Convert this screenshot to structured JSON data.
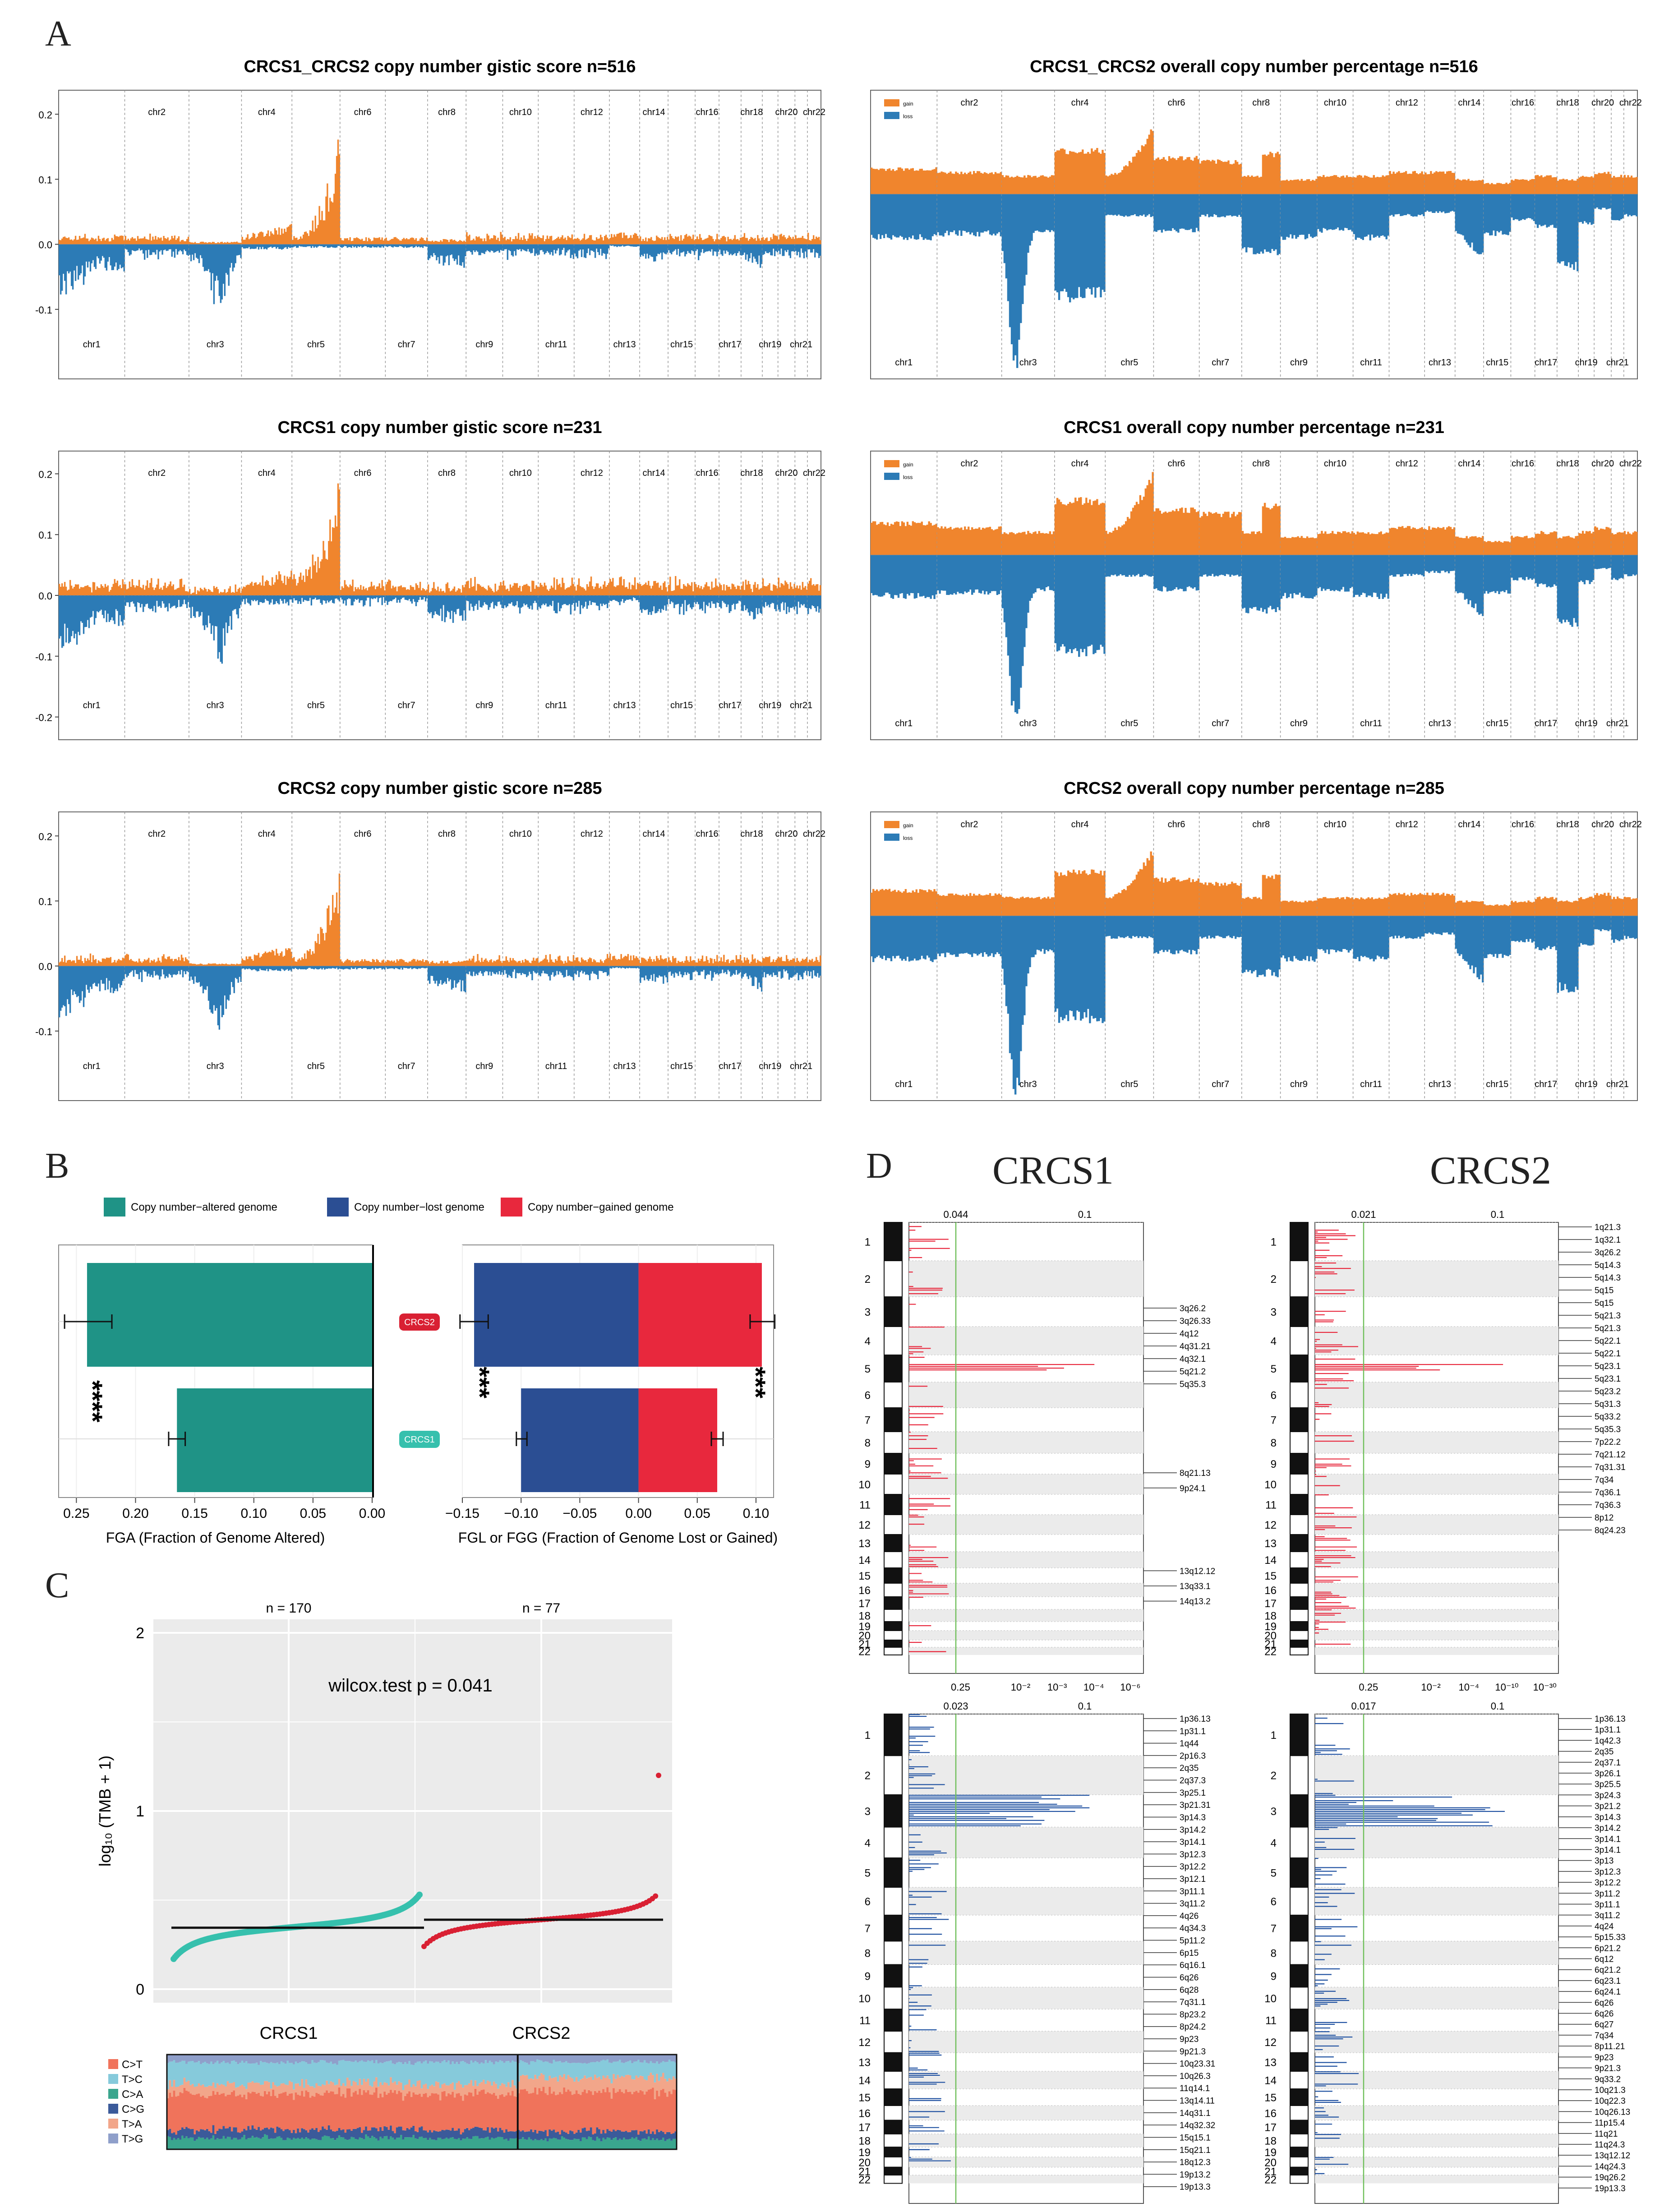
{
  "panel_letters": {
    "a": "A",
    "b": "B",
    "c": "C",
    "d": "D"
  },
  "colors": {
    "gain": "#f0852d",
    "loss": "#2c7bb6",
    "altered": "#1f9386",
    "lost": "#2b4e93",
    "gained": "#e8283d",
    "crcs1": "#36c0ad",
    "crcs2": "#d92033",
    "grid": "#e6e6e6",
    "dlossband": "#1e50a0"
  },
  "panel_a": {
    "chr_top": [
      "chr2",
      "chr4",
      "chr6",
      "chr8",
      "chr10",
      "chr12",
      "chr14",
      "chr16",
      "chr18",
      "chr20",
      "chr22"
    ],
    "chr_bottom": [
      "chr1",
      "chr3",
      "chr5",
      "chr7",
      "chr9",
      "chr11",
      "chr13",
      "chr15",
      "chr17",
      "chr19",
      "chr21"
    ],
    "legend": {
      "gain": "gain",
      "loss": "loss"
    },
    "rows": [
      {
        "left_title": "CRCS1_CRCS2 copy number gistic score n=516",
        "right_title": "CRCS1_CRCS2 overall copy number percentage n=516",
        "yticks": [
          "0.2",
          "0.1",
          "0.0",
          "-0.1"
        ]
      },
      {
        "left_title": "CRCS1 copy number gistic score n=231",
        "right_title": "CRCS1 overall copy number percentage n=231",
        "yticks": [
          "0.2",
          "0.1",
          "0.0",
          "-0.1",
          "-0.2"
        ]
      },
      {
        "left_title": "CRCS2 copy number gistic score n=285",
        "right_title": "CRCS2 overall copy number percentage n=285",
        "yticks": [
          "0.2",
          "0.1",
          "0.0",
          "-0.1"
        ]
      }
    ]
  },
  "panel_b": {
    "legend": [
      "Copy number−altered genome",
      "Copy number−lost genome",
      "Copy number−gained genome"
    ],
    "groups": [
      "CRCS2",
      "CRCS1"
    ],
    "left_xlabel": "FGA (Fraction of Genome Altered)",
    "left_ticks": [
      "0.25",
      "0.20",
      "0.15",
      "0.10",
      "0.05",
      "0.00"
    ],
    "right_xlabel": "FGL or FGG (Fraction of Genome Lost or Gained)",
    "right_ticks": [
      "−0.15",
      "−0.10",
      "−0.05",
      "0.00",
      "0.05",
      "0.10"
    ],
    "sig_left": "****",
    "sig_lost": "***",
    "sig_gained": "***"
  },
  "panel_c": {
    "counts": [
      "n = 170",
      "n = 77"
    ],
    "test_label": "wilcox.test p = 0.041",
    "ylabel": "log₁₀ (TMB + 1)",
    "yticks": [
      "2",
      "1",
      "0"
    ],
    "groups": [
      "CRCS1",
      "CRCS2"
    ],
    "sig_types": [
      "C>T",
      "T>C",
      "C>A",
      "C>G",
      "T>A",
      "T>G"
    ]
  },
  "panel_d": {
    "titles": [
      "CRCS1",
      "CRCS2"
    ],
    "chroms": [
      "1",
      "2",
      "3",
      "4",
      "5",
      "6",
      "7",
      "8",
      "9",
      "10",
      "11",
      "12",
      "13",
      "14",
      "15",
      "16",
      "17",
      "18",
      "19",
      "20",
      "21",
      "22"
    ],
    "plots": [
      {
        "top_ticks": [
          "0.044",
          "0.1"
        ],
        "bottom_ticks": [
          "0.25",
          "10⁻²",
          "10⁻³",
          "10⁻⁴",
          "10⁻⁶"
        ],
        "labels": [
          "3q26.2",
          "3q26.33",
          "4q12",
          "4q31.21",
          "4q32.1",
          "5q21.2",
          "5q35.3",
          "8q21.13",
          "9p24.1",
          "13q12.12",
          "13q33.1",
          "14q13.2"
        ]
      },
      {
        "top_ticks": [
          "0.021",
          "0.1"
        ],
        "bottom_ticks": [
          "0.25",
          "10⁻²",
          "10⁻⁴",
          "10⁻¹⁰",
          "10⁻³⁰"
        ],
        "labels": [
          "1q21.3",
          "1q32.1",
          "3q26.2",
          "5q14.3",
          "5q14.3",
          "5q15",
          "5q15",
          "5q21.3",
          "5q21.3",
          "5q22.1",
          "5q22.1",
          "5q23.1",
          "5q23.1",
          "5q23.2",
          "5q31.3",
          "5q33.2",
          "5q35.3",
          "7p22.2",
          "7q21.12",
          "7q31.31",
          "7q34",
          "7q36.1",
          "7q36.3",
          "8p12",
          "8q24.23"
        ]
      },
      {
        "top_ticks": [
          "0.023",
          "0.1"
        ],
        "bottom_ticks": [
          "0.25",
          "10⁻²",
          "10⁻³",
          "10⁻⁶",
          "10⁻¹⁰",
          "10⁻²⁰"
        ],
        "labels": [
          "1p36.13",
          "1p31.1",
          "1q44",
          "2p16.3",
          "2q35",
          "2q37.3",
          "3p25.1",
          "3p21.31",
          "3p14.3",
          "3p14.2",
          "3p14.1",
          "3p12.3",
          "3p12.2",
          "3p12.1",
          "3p11.1",
          "3q11.2",
          "4q26",
          "4q34.3",
          "5p11.2",
          "6p15",
          "6q16.1",
          "6q26",
          "6q28",
          "7q31.1",
          "8p23.2",
          "8p24.2",
          "9p23",
          "9p21.3",
          "10q23.31",
          "10q26.3",
          "11q14.1",
          "13q14.11",
          "14q31.1",
          "14q32.32",
          "15q15.1",
          "15q21.1",
          "18q12.3",
          "19p13.2",
          "19p13.3"
        ]
      },
      {
        "top_ticks": [
          "0.017",
          "0.1"
        ],
        "bottom_ticks": [
          "0.25",
          "10⁻²",
          "10⁻⁴",
          "10⁻⁶",
          "10⁻¹⁰"
        ],
        "labels": [
          "1p36.13",
          "1p31.1",
          "1q42.3",
          "2q35",
          "2q37.1",
          "3p26.1",
          "3p25.5",
          "3p24.3",
          "3p21.2",
          "3p14.3",
          "3p14.2",
          "3p14.1",
          "3p14.1",
          "3p13",
          "3p12.3",
          "3p12.2",
          "3p11.2",
          "3p11.1",
          "3q11.2",
          "4q24",
          "5p15.33",
          "6p21.2",
          "6q12",
          "6q21.2",
          "6q23.1",
          "6q24.1",
          "6q26",
          "6q26",
          "6q27",
          "7q34",
          "8p11.21",
          "9p23",
          "9p21.3",
          "9q33.2",
          "10q21.3",
          "10q22.3",
          "10q26.13",
          "11p15.4",
          "11q21",
          "11q24.3",
          "13q12.12",
          "14q24.3",
          "19q26.2",
          "19p13.3"
        ]
      }
    ]
  }
}
